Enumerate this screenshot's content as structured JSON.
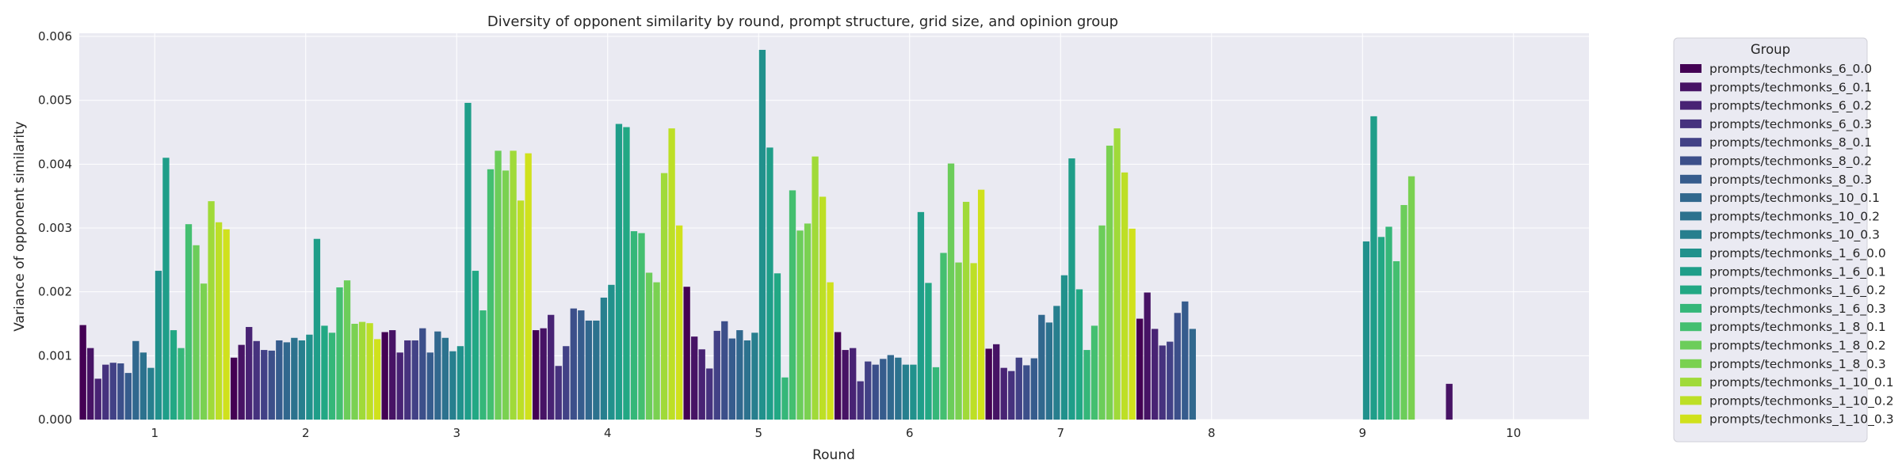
{
  "chart_data": {
    "type": "bar",
    "title": "Diversity of opponent similarity by round, prompt structure, grid size, and opinion group",
    "xlabel": "Round",
    "ylabel": "Variance of opponent similarity",
    "categories": [
      "1",
      "2",
      "3",
      "4",
      "5",
      "6",
      "7",
      "8",
      "9",
      "10"
    ],
    "ylim": [
      0,
      0.00605
    ],
    "yticks": [
      "0.000",
      "0.001",
      "0.002",
      "0.003",
      "0.004",
      "0.005",
      "0.006"
    ],
    "ytick_values": [
      0,
      0.001,
      0.002,
      0.003,
      0.004,
      0.005,
      0.006
    ],
    "grid": true,
    "legend": {
      "title": "Group",
      "placement": "outside-right"
    },
    "series": [
      {
        "name": "prompts/techmonks_6_0.0",
        "color": "#440154",
        "values": [
          0.00148,
          0.00097,
          0.00137,
          0.0014,
          0.00208,
          0.00137,
          0.00111,
          0.00158,
          null,
          null
        ]
      },
      {
        "name": "prompts/techmonks_6_0.1",
        "color": "#471365",
        "values": [
          0.00112,
          0.00117,
          0.0014,
          0.00143,
          0.0013,
          0.00109,
          0.00118,
          0.00199,
          null,
          0.00056
        ]
      },
      {
        "name": "prompts/techmonks_6_0.2",
        "color": "#482374",
        "values": [
          0.00064,
          0.00145,
          0.00105,
          0.00164,
          0.0011,
          0.00112,
          0.00081,
          0.00142,
          null,
          null
        ]
      },
      {
        "name": "prompts/techmonks_6_0.3",
        "color": "#46327e",
        "values": [
          0.00086,
          0.00123,
          0.00124,
          0.00084,
          0.0008,
          0.0006,
          0.00076,
          0.00116,
          null,
          null
        ]
      },
      {
        "name": "prompts/techmonks_8_0.1",
        "color": "#424186",
        "values": [
          0.00089,
          0.00109,
          0.00124,
          0.00115,
          0.00139,
          0.00091,
          0.00097,
          0.00122,
          null,
          null
        ]
      },
      {
        "name": "prompts/techmonks_8_0.2",
        "color": "#3c4f8a",
        "values": [
          0.00088,
          0.00108,
          0.00143,
          0.00174,
          0.00154,
          0.00086,
          0.00085,
          0.00167,
          null,
          null
        ]
      },
      {
        "name": "prompts/techmonks_8_0.3",
        "color": "#365c8d",
        "values": [
          0.00073,
          0.00124,
          0.00105,
          0.00171,
          0.00127,
          0.00095,
          0.00096,
          0.00185,
          null,
          null
        ]
      },
      {
        "name": "prompts/techmonks_10_0.1",
        "color": "#31688e",
        "values": [
          0.00123,
          0.00121,
          0.00138,
          0.00155,
          0.0014,
          0.00101,
          0.00164,
          0.00142,
          null,
          null
        ]
      },
      {
        "name": "prompts/techmonks_10_0.2",
        "color": "#2c728e",
        "values": [
          0.00105,
          0.00128,
          0.00128,
          0.00155,
          0.00124,
          0.00097,
          0.00152,
          null,
          null,
          null
        ]
      },
      {
        "name": "prompts/techmonks_10_0.3",
        "color": "#277f8e",
        "values": [
          0.00081,
          0.00124,
          0.00107,
          0.00191,
          0.00136,
          0.00086,
          0.00178,
          null,
          null,
          null
        ]
      },
      {
        "name": "prompts/techmonks_1_6_0.0",
        "color": "#21918c",
        "values": [
          0.00233,
          0.00133,
          0.00115,
          0.00211,
          0.00579,
          0.00086,
          0.00226,
          null,
          0.00279,
          null
        ]
      },
      {
        "name": "prompts/techmonks_1_6_0.1",
        "color": "#1f9e89",
        "values": [
          0.0041,
          0.00283,
          0.00496,
          0.00463,
          0.00426,
          0.00325,
          0.00409,
          null,
          0.00475,
          null
        ]
      },
      {
        "name": "prompts/techmonks_1_6_0.2",
        "color": "#22a884",
        "values": [
          0.0014,
          0.00147,
          0.00233,
          0.00458,
          0.00229,
          0.00214,
          0.00204,
          null,
          0.00286,
          null
        ]
      },
      {
        "name": "prompts/techmonks_1_6_0.3",
        "color": "#35b779",
        "values": [
          0.00112,
          0.00136,
          0.00171,
          0.00295,
          0.00066,
          0.00082,
          0.00109,
          null,
          0.00302,
          null
        ]
      },
      {
        "name": "prompts/techmonks_1_8_0.1",
        "color": "#44bf70",
        "values": [
          0.00306,
          0.00207,
          0.00392,
          0.00292,
          0.00359,
          0.00261,
          0.00147,
          null,
          0.00248,
          null
        ]
      },
      {
        "name": "prompts/techmonks_1_8_0.2",
        "color": "#6ccd5a",
        "values": [
          0.00273,
          0.00218,
          0.00421,
          0.0023,
          0.00296,
          0.00401,
          0.00304,
          null,
          0.00336,
          null
        ]
      },
      {
        "name": "prompts/techmonks_1_8_0.3",
        "color": "#7ad151",
        "values": [
          0.00213,
          0.0015,
          0.0039,
          0.00215,
          0.00307,
          0.00246,
          0.00429,
          null,
          0.00381,
          null
        ]
      },
      {
        "name": "prompts/techmonks_1_10_0.1",
        "color": "#a0da39",
        "values": [
          0.00342,
          0.00153,
          0.00421,
          0.00386,
          0.00412,
          0.00341,
          0.00456,
          null,
          null,
          null
        ]
      },
      {
        "name": "prompts/techmonks_1_10_0.2",
        "color": "#bddf26",
        "values": [
          0.00309,
          0.00151,
          0.00343,
          0.00456,
          0.00349,
          0.00245,
          0.00387,
          null,
          null,
          null
        ]
      },
      {
        "name": "prompts/techmonks_1_10_0.3",
        "color": "#d0e11c",
        "values": [
          0.00298,
          0.00126,
          0.00417,
          0.00304,
          0.00215,
          0.0036,
          0.00299,
          null,
          null,
          null
        ]
      }
    ]
  }
}
